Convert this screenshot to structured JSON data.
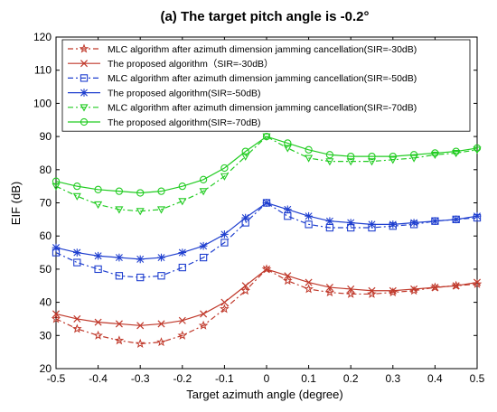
{
  "chart_data": {
    "type": "line",
    "title": "(a) The target pitch angle is -0.2°",
    "xlabel": "Target azimuth angle (degree)",
    "ylabel": "EIF (dB)",
    "xlim": [
      -0.5,
      0.5
    ],
    "ylim": [
      20,
      120
    ],
    "xticks": [
      -0.5,
      -0.4,
      -0.3,
      -0.2,
      -0.1,
      0,
      0.1,
      0.2,
      0.3,
      0.4,
      0.5
    ],
    "xtick_labels": [
      "-0.5",
      "-0.4",
      "-0.3",
      "-0.2",
      "-0.1",
      "0",
      "0.1",
      "0.2",
      "0.3",
      "0.4",
      "0.5"
    ],
    "yticks": [
      20,
      30,
      40,
      50,
      60,
      70,
      80,
      90,
      100,
      110,
      120
    ],
    "ytick_labels": [
      "20",
      "30",
      "40",
      "50",
      "60",
      "70",
      "80",
      "90",
      "100",
      "110",
      "120"
    ],
    "legend_position": "top",
    "grid": false,
    "x": [
      -0.5,
      -0.45,
      -0.4,
      -0.35,
      -0.3,
      -0.25,
      -0.2,
      -0.15,
      -0.1,
      -0.05,
      0,
      0.05,
      0.1,
      0.15,
      0.2,
      0.25,
      0.3,
      0.35,
      0.4,
      0.45,
      0.5
    ],
    "series": [
      {
        "name": "MLC algorithm after azimuth dimension jamming cancellation(SIR=-30dB)",
        "color": "#c0392b",
        "dash": "6,3,2,3",
        "marker": "star",
        "values": [
          35,
          32,
          30,
          28.5,
          27.5,
          28,
          30,
          33,
          38,
          43.5,
          50,
          46.5,
          44,
          43,
          42.5,
          42.5,
          43,
          43.5,
          44.5,
          45,
          45.5
        ]
      },
      {
        "name": "The proposed algorithm（SIR=-30dB）",
        "color": "#c0392b",
        "dash": "",
        "marker": "x",
        "values": [
          36.5,
          35,
          34,
          33.5,
          33,
          33.5,
          34.5,
          36.5,
          40,
          45,
          50,
          48,
          46,
          44.5,
          44,
          43.5,
          43.5,
          44,
          44.5,
          45,
          46
        ]
      },
      {
        "name": "MLC algorithm after azimuth dimension jamming cancellation(SIR=-50dB)",
        "color": "#1f3fcf",
        "dash": "6,3,2,3",
        "marker": "square",
        "values": [
          55,
          52,
          50,
          48,
          47.5,
          48,
          50.5,
          53.5,
          58,
          64,
          70,
          66,
          63.5,
          62.5,
          62.5,
          62.5,
          63,
          63.5,
          64.5,
          65,
          65.5
        ]
      },
      {
        "name": "The proposed algorithm(SIR=-50dB)",
        "color": "#1f3fcf",
        "dash": "",
        "marker": "asterisk",
        "values": [
          56.5,
          55,
          54,
          53.5,
          53,
          53.5,
          55,
          57,
          60.5,
          65.5,
          70,
          68,
          66,
          64.5,
          64,
          63.5,
          63.5,
          64,
          64.5,
          65,
          66
        ]
      },
      {
        "name": "MLC algorithm after azimuth dimension jamming cancellation(SIR=-70dB)",
        "color": "#22cc22",
        "dash": "6,3,2,3",
        "marker": "triangle-down",
        "values": [
          75,
          72,
          69.5,
          68,
          67.5,
          68,
          70.5,
          73.5,
          78,
          84,
          90,
          86.5,
          83.5,
          82.5,
          82.5,
          82.5,
          83,
          83.5,
          84.5,
          85,
          86
        ]
      },
      {
        "name": "The proposed algorithm(SIR=-70dB)",
        "color": "#22cc22",
        "dash": "",
        "marker": "circle",
        "values": [
          76.5,
          75,
          74,
          73.5,
          73,
          73.5,
          75,
          77,
          80.5,
          85.5,
          90,
          88,
          86,
          84.5,
          84,
          84,
          84,
          84.5,
          85,
          85.5,
          86.5
        ]
      }
    ]
  }
}
